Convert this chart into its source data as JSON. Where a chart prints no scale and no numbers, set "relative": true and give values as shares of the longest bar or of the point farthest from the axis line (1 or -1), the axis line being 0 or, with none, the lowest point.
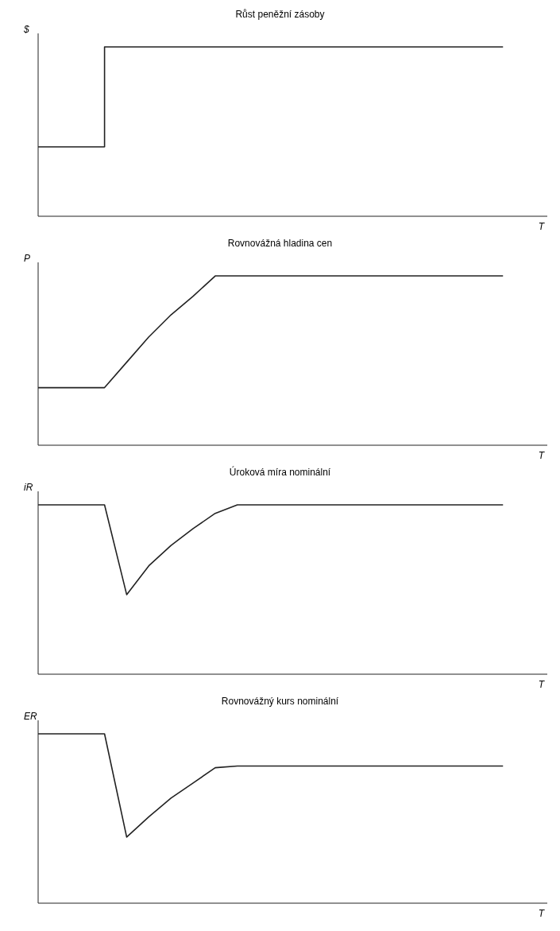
{
  "chart_data": [
    {
      "type": "step",
      "title": "Růst peněžní zásoby",
      "ylabel": "$",
      "xlabel": "T",
      "relative": true,
      "grid": false,
      "legend": false,
      "marker": "none",
      "line_style": "solid",
      "categories": [
        null,
        null,
        null,
        null,
        null,
        null,
        null,
        null,
        null,
        null,
        null,
        null,
        null,
        null,
        null,
        null,
        null,
        null,
        null,
        null,
        null,
        null,
        null,
        null
      ],
      "series": [
        {
          "color": "#222222",
          "values": [
            0.41,
            0.41,
            0.41,
            1,
            1,
            1,
            1,
            1,
            1,
            1,
            1,
            1,
            1,
            1,
            1,
            1,
            1,
            1,
            1,
            1,
            1,
            1,
            null,
            null
          ]
        }
      ]
    },
    {
      "type": "line",
      "title": "Rovnovážná hladina cen",
      "ylabel": "P",
      "xlabel": "T",
      "relative": true,
      "grid": false,
      "legend": false,
      "marker": "none",
      "line_style": "solid",
      "categories": [
        null,
        null,
        null,
        null,
        null,
        null,
        null,
        null,
        null,
        null,
        null,
        null,
        null,
        null,
        null,
        null,
        null,
        null,
        null,
        null,
        null,
        null,
        null,
        null
      ],
      "series": [
        {
          "color": "#222222",
          "values": [
            0.34,
            0.34,
            0.34,
            0.34,
            0.49,
            0.64,
            0.77,
            0.88,
            1,
            1,
            1,
            1,
            1,
            1,
            1,
            1,
            1,
            1,
            1,
            1,
            1,
            1,
            null,
            null
          ]
        }
      ]
    },
    {
      "type": "line",
      "title": "Úroková míra nominální",
      "ylabel": "iR",
      "xlabel": "T",
      "relative": true,
      "grid": false,
      "legend": false,
      "marker": "none",
      "line_style": "solid",
      "categories": [
        null,
        null,
        null,
        null,
        null,
        null,
        null,
        null,
        null,
        null,
        null,
        null,
        null,
        null,
        null,
        null,
        null,
        null,
        null,
        null,
        null,
        null,
        null,
        null
      ],
      "series": [
        {
          "color": "#222222",
          "values": [
            1,
            1,
            1,
            1,
            0.47,
            0.64,
            0.76,
            0.86,
            0.95,
            1,
            1,
            1,
            1,
            1,
            1,
            1,
            1,
            1,
            1,
            1,
            1,
            1,
            null,
            null
          ]
        }
      ]
    },
    {
      "type": "line",
      "title": "Rovnovážný kurs nominální",
      "ylabel": "ER",
      "xlabel": "T",
      "relative": true,
      "grid": false,
      "legend": false,
      "marker": "none",
      "line_style": "solid",
      "categories": [
        null,
        null,
        null,
        null,
        null,
        null,
        null,
        null,
        null,
        null,
        null,
        null,
        null,
        null,
        null,
        null,
        null,
        null,
        null,
        null,
        null,
        null,
        null,
        null
      ],
      "series": [
        {
          "color": "#222222",
          "values": [
            1,
            1,
            1,
            1,
            0.39,
            0.51,
            0.62,
            0.71,
            0.8,
            0.81,
            0.81,
            0.81,
            0.81,
            0.81,
            0.81,
            0.81,
            0.81,
            0.81,
            0.81,
            0.81,
            0.81,
            0.81,
            null,
            null
          ]
        }
      ]
    }
  ]
}
